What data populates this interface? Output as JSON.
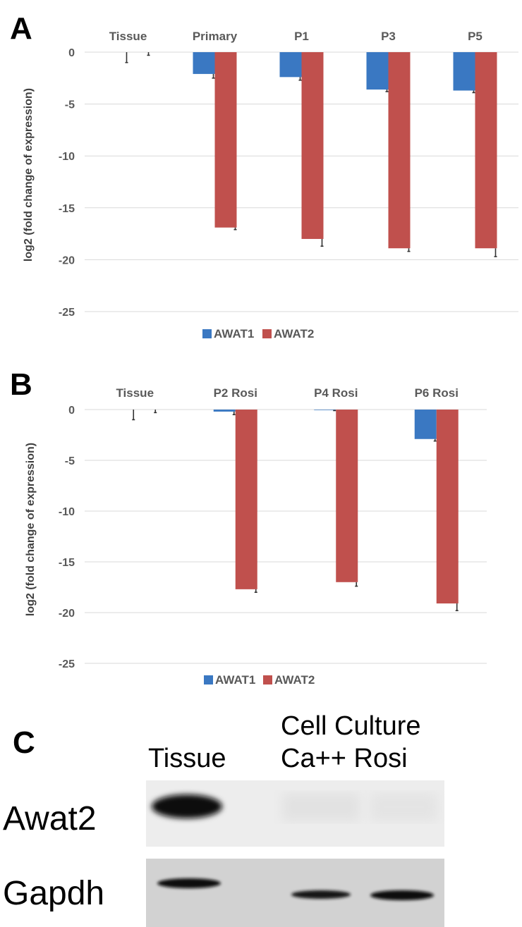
{
  "panels": {
    "A": {
      "letter": "A"
    },
    "B": {
      "letter": "B"
    },
    "C": {
      "letter": "C",
      "header_tissue": "Tissue",
      "header_culture_line1": "Cell Culture",
      "header_culture_line2": "Ca++ Rosi",
      "row_labels": [
        "Awat2",
        "Gapdh"
      ]
    }
  },
  "colors": {
    "awat1": "#3a78c2",
    "awat2": "#c0504d",
    "grid": "#d9d9d9",
    "text": "#595959"
  },
  "chart_data": [
    {
      "panel": "A",
      "type": "bar",
      "title": "",
      "ylabel": "log2 (fold change of expression)",
      "ylim": [
        -25,
        0
      ],
      "yticks": [
        0,
        -5,
        -10,
        -15,
        -20,
        -25
      ],
      "grid": true,
      "legend_position": "bottom",
      "categories": [
        "Tissue",
        "Primary",
        "P1",
        "P3",
        "P5"
      ],
      "series": [
        {
          "name": "AWAT1",
          "color": "#3a78c2",
          "values": [
            0,
            -2.1,
            -2.4,
            -3.6,
            -3.7
          ],
          "errors": [
            1.0,
            0.4,
            0.3,
            0.2,
            0.2
          ]
        },
        {
          "name": "AWAT2",
          "color": "#c0504d",
          "values": [
            0,
            -16.9,
            -18.0,
            -18.9,
            -18.9
          ],
          "errors": [
            0.3,
            0.2,
            0.7,
            0.3,
            0.8
          ]
        }
      ]
    },
    {
      "panel": "B",
      "type": "bar",
      "title": "",
      "ylabel": "log2 (fold change of expression)",
      "ylim": [
        -25,
        0
      ],
      "yticks": [
        0,
        -5,
        -10,
        -15,
        -20,
        -25
      ],
      "grid": true,
      "legend_position": "bottom",
      "categories": [
        "Tissue",
        "P2 Rosi",
        "P4 Rosi",
        "P6 Rosi"
      ],
      "series": [
        {
          "name": "AWAT1",
          "color": "#3a78c2",
          "values": [
            0,
            -0.2,
            -0.05,
            -2.9
          ],
          "errors": [
            1.0,
            0.3,
            0.05,
            0.2
          ]
        },
        {
          "name": "AWAT2",
          "color": "#c0504d",
          "values": [
            0,
            -17.7,
            -17.0,
            -19.1
          ],
          "errors": [
            0.3,
            0.3,
            0.4,
            0.7
          ]
        }
      ]
    }
  ]
}
